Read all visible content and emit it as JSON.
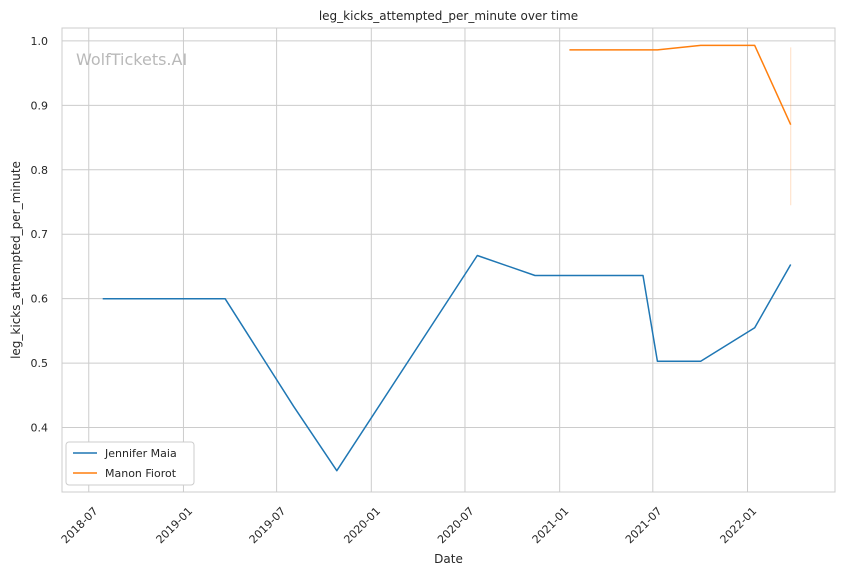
{
  "chart_data": {
    "type": "line",
    "title": "leg_kicks_attempted_per_minute over time",
    "xlabel": "Date",
    "ylabel": "leg_kicks_attempted_per_minute",
    "watermark": "WolfTickets.AI",
    "x_ticks": [
      "2018-07",
      "2019-01",
      "2019-07",
      "2020-01",
      "2020-07",
      "2021-01",
      "2021-07",
      "2022-01"
    ],
    "y_ticks": [
      "0.4",
      "0.5",
      "0.6",
      "0.7",
      "0.8",
      "0.9",
      "1.0"
    ],
    "xlim": [
      "2018-05-10",
      "2022-06-20"
    ],
    "ylim": [
      0.3,
      1.02
    ],
    "grid": true,
    "legend_position": "lower-left",
    "series": [
      {
        "name": "Jennifer Maia",
        "color": "#1f77b4",
        "x": [
          "2018-07-28",
          "2019-03-23",
          "2019-08-03",
          "2019-10-26",
          "2020-07-25",
          "2020-11-14",
          "2021-06-12",
          "2021-07-10",
          "2021-10-02",
          "2022-01-15",
          "2022-03-26"
        ],
        "y": [
          0.6,
          0.6,
          0.433,
          0.333,
          0.667,
          0.636,
          0.636,
          0.503,
          0.503,
          0.555,
          0.653
        ]
      },
      {
        "name": "Manon Fiorot",
        "color": "#ff7f0e",
        "x": [
          "2021-01-20",
          "2021-07-10",
          "2021-10-02",
          "2022-01-15",
          "2022-03-26"
        ],
        "y": [
          0.986,
          0.986,
          0.993,
          0.993,
          0.87
        ],
        "error_band": {
          "x": "2022-03-26",
          "low": 0.745,
          "high": 0.99
        }
      }
    ]
  }
}
